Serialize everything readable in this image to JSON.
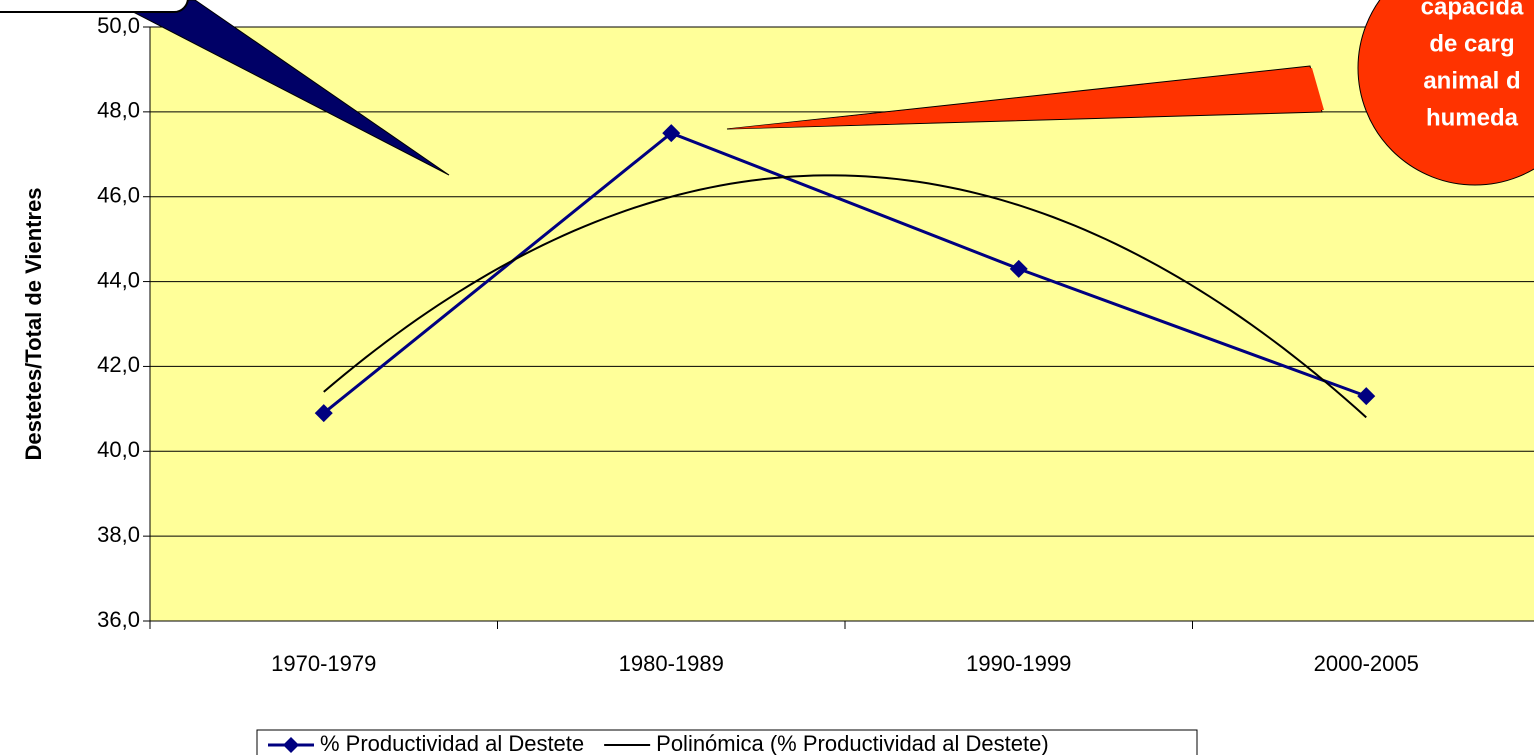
{
  "chart_data": {
    "type": "line",
    "y_label": "Destetes/Total de Vientres",
    "categories": [
      "1970-1979",
      "1980-1989",
      "1990-1999",
      "2000-2005"
    ],
    "series": [
      {
        "name": "% Productividad al Destete",
        "color": "#000080",
        "values": [
          40.9,
          47.5,
          44.3,
          41.3
        ],
        "marker": "diamond"
      },
      {
        "name": "Polinómica (% Productividad al Destete)",
        "color": "#000000",
        "trendline_of": 0,
        "order": 2
      }
    ],
    "ylim": [
      36,
      50
    ],
    "yticks": [
      {
        "value": 36,
        "label": "36,0"
      },
      {
        "value": 38,
        "label": "38,0"
      },
      {
        "value": 40,
        "label": "40,0"
      },
      {
        "value": 42,
        "label": "42,0"
      },
      {
        "value": 44,
        "label": "44,0"
      },
      {
        "value": 46,
        "label": "46,0"
      },
      {
        "value": 48,
        "label": "48,0"
      },
      {
        "value": 50,
        "label": "50,0"
      }
    ],
    "grid": true,
    "plot_color": "#ffff99",
    "legend": "bottom",
    "annotations": [
      {
        "lines": [
          "capacida",
          "de carg",
          "animal d",
          "humeda"
        ],
        "color": "#ff3300"
      }
    ]
  }
}
